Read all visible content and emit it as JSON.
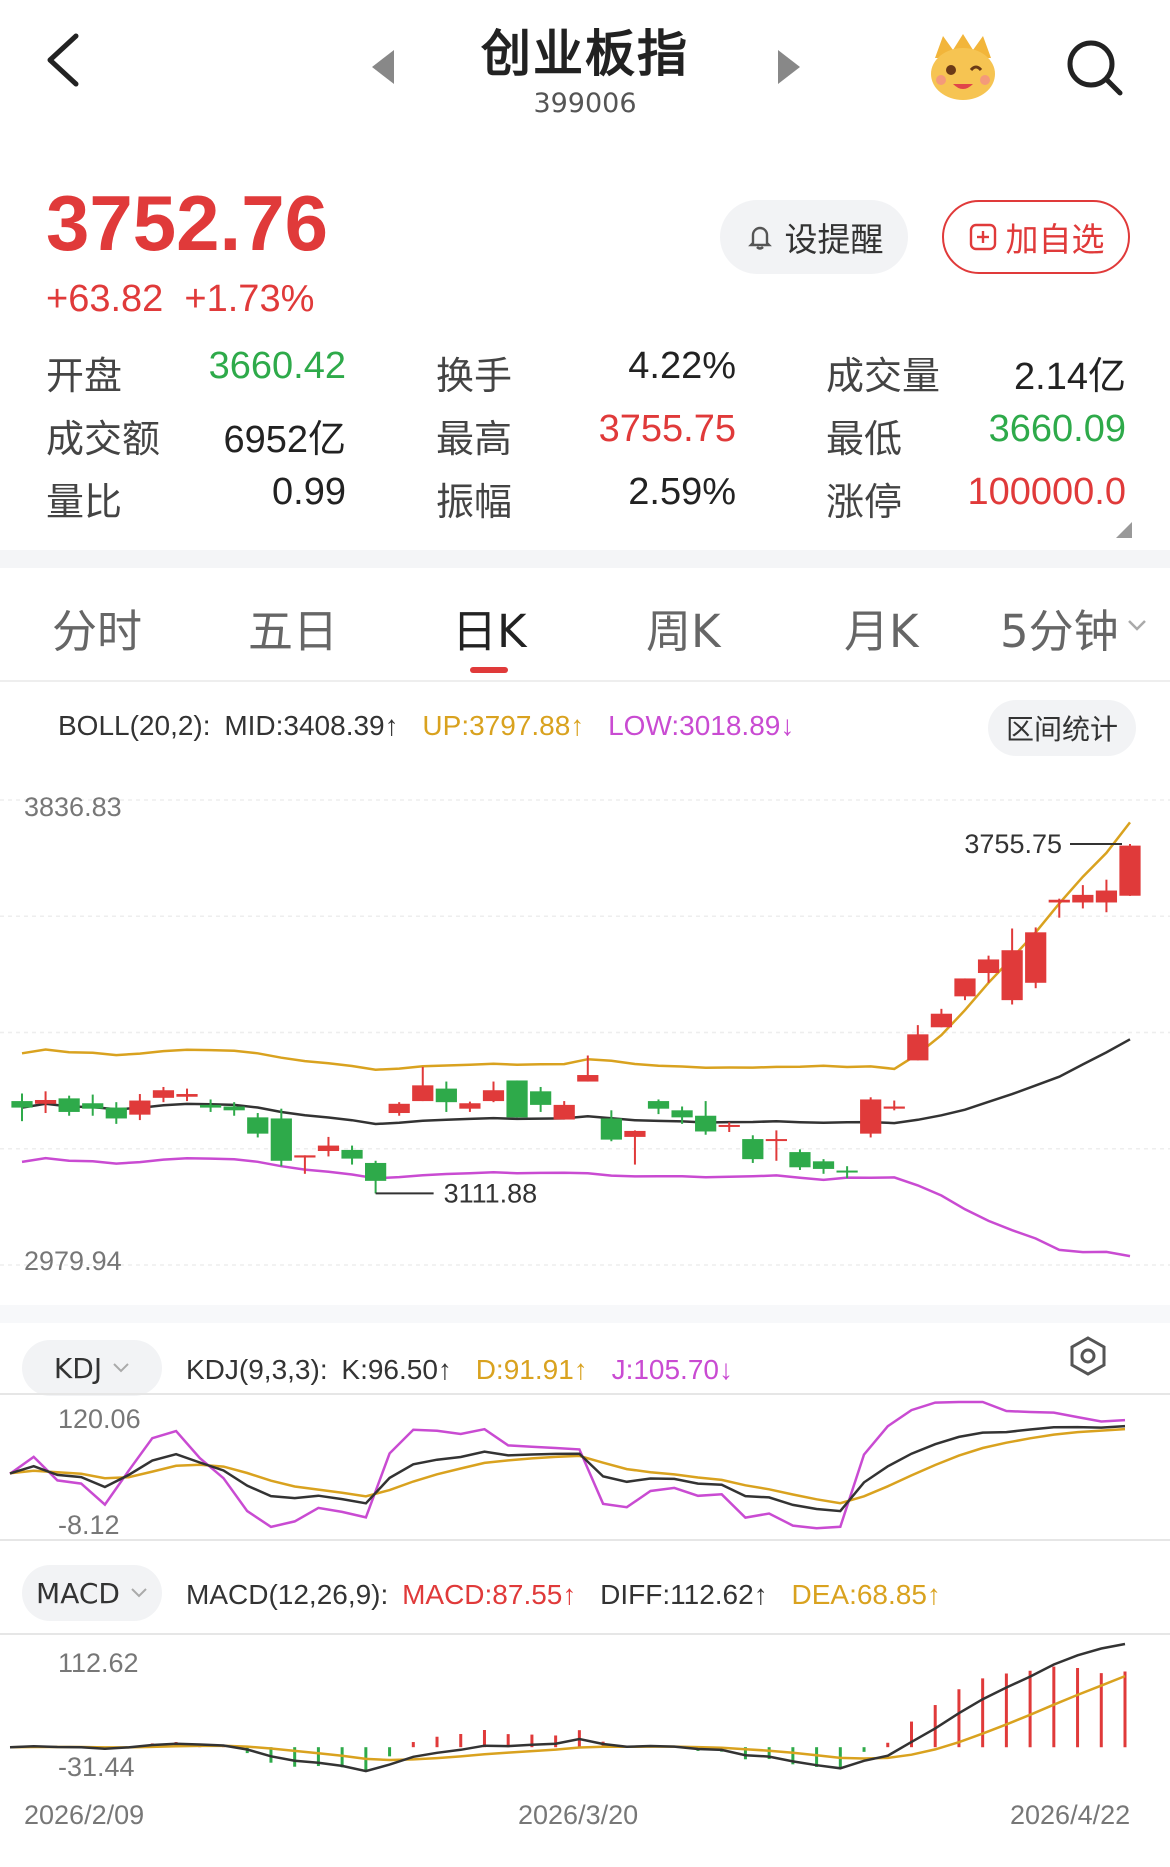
{
  "header": {
    "title": "创业板指",
    "code": "399006",
    "back_icon": "chevron-left-icon",
    "search_icon": "search-icon"
  },
  "quote": {
    "price": "3752.76",
    "change": "+63.82",
    "change_pct": "+1.73%",
    "alert_button": "设提醒",
    "add_watch_button": "加自选"
  },
  "stats": [
    {
      "label": "开盘",
      "value": "3660.42",
      "color": "#2eaa4a"
    },
    {
      "label": "换手",
      "value": "4.22%",
      "color": "#222222"
    },
    {
      "label": "成交量",
      "value": "2.14亿",
      "color": "#222222"
    },
    {
      "label": "成交额",
      "value": "6952亿",
      "color": "#222222"
    },
    {
      "label": "最高",
      "value": "3755.75",
      "color": "#e03a3a"
    },
    {
      "label": "最低",
      "value": "3660.09",
      "color": "#2eaa4a"
    },
    {
      "label": "量比",
      "value": "0.99",
      "color": "#222222"
    },
    {
      "label": "振幅",
      "value": "2.59%",
      "color": "#222222"
    },
    {
      "label": "涨停",
      "value": "100000.0",
      "color": "#e03a3a"
    }
  ],
  "tabs": [
    {
      "label": "分时",
      "active": false
    },
    {
      "label": "五日",
      "active": false
    },
    {
      "label": "日K",
      "active": true
    },
    {
      "label": "周K",
      "active": false
    },
    {
      "label": "月K",
      "active": false
    },
    {
      "label": "5分钟",
      "active": false
    }
  ],
  "boll": {
    "prefix": "BOLL(20,2):",
    "mid": "MID:3408.39↑",
    "up": "UP:3797.88↑",
    "low": "LOW:3018.89↓",
    "range_button": "区间统计",
    "mid_color": "#333333",
    "up_color": "#d9a21f",
    "low_color": "#c94bd2"
  },
  "kdj": {
    "selector": "KDJ",
    "prefix": "KDJ(9,3,3):",
    "k": "K:96.50↑",
    "d": "D:91.91↑",
    "j": "J:105.70↓",
    "y_max": "120.06",
    "y_min": "-8.12"
  },
  "macd": {
    "selector": "MACD",
    "prefix": "MACD(12,26,9):",
    "macd": "MACD:87.55↑",
    "diff": "DIFF:112.62↑",
    "dea": "DEA:68.85↑",
    "y_max": "112.62",
    "y_min": "-31.44"
  },
  "dates": {
    "start": "2026/2/09",
    "middle": "2026/3/20",
    "end": "2026/4/22"
  },
  "chart_data": {
    "type": "candlestick",
    "y_axis_top": "3836.83",
    "y_axis_bottom": "2979.94",
    "ylim": [
      2979.94,
      3836.83
    ],
    "high_label": "3755.75",
    "low_label": "3111.88",
    "candles": [
      [
        3282,
        3270,
        3296,
        3245
      ],
      [
        3277,
        3284,
        3300,
        3260
      ],
      [
        3287,
        3262,
        3292,
        3255
      ],
      [
        3278,
        3268,
        3294,
        3255
      ],
      [
        3270,
        3250,
        3280,
        3240
      ],
      [
        3257,
        3283,
        3295,
        3247
      ],
      [
        3288,
        3302,
        3308,
        3280
      ],
      [
        3290,
        3295,
        3305,
        3282
      ],
      [
        3275,
        3270,
        3285,
        3262
      ],
      [
        3272,
        3265,
        3280,
        3255
      ],
      [
        3252,
        3222,
        3260,
        3215
      ],
      [
        3250,
        3172,
        3268,
        3162
      ],
      [
        3178,
        3182,
        3182,
        3148
      ],
      [
        3190,
        3200,
        3216,
        3180
      ],
      [
        3192,
        3176,
        3200,
        3165
      ],
      [
        3168,
        3135,
        3172,
        3111.88
      ],
      [
        3260,
        3277,
        3280,
        3255
      ],
      [
        3282,
        3311,
        3345,
        3282
      ],
      [
        3305,
        3280,
        3318,
        3262
      ],
      [
        3268,
        3278,
        3281,
        3262
      ],
      [
        3282,
        3302,
        3318,
        3280
      ],
      [
        3320,
        3252,
        3320,
        3252
      ],
      [
        3300,
        3275,
        3308,
        3262
      ],
      [
        3248,
        3275,
        3282,
        3248
      ],
      [
        3318,
        3330,
        3366,
        3318
      ],
      [
        3250,
        3211,
        3265,
        3208
      ],
      [
        3216,
        3227,
        3228,
        3165
      ],
      [
        3282,
        3268,
        3285,
        3258
      ],
      [
        3265,
        3252,
        3272,
        3240
      ],
      [
        3255,
        3226,
        3282,
        3220
      ],
      [
        3238,
        3238,
        3243,
        3225
      ],
      [
        3212,
        3175,
        3219,
        3168
      ],
      [
        3210,
        3212,
        3228,
        3172
      ],
      [
        3188,
        3160,
        3193,
        3155
      ],
      [
        3171,
        3157,
        3175,
        3148
      ],
      [
        3154,
        3152,
        3162,
        3140
      ],
      [
        3222,
        3285,
        3289,
        3215
      ],
      [
        3268,
        3272,
        3283,
        3265
      ],
      [
        3357,
        3405,
        3422,
        3357
      ],
      [
        3418,
        3443,
        3452,
        3418
      ],
      [
        3475,
        3508,
        3508,
        3468
      ],
      [
        3518,
        3543,
        3550,
        3500
      ],
      [
        3468,
        3560,
        3600,
        3460
      ],
      [
        3500,
        3593,
        3602,
        3490
      ],
      [
        3648,
        3653,
        3655,
        3620
      ],
      [
        3648,
        3662,
        3680,
        3637
      ],
      [
        3648,
        3670,
        3690,
        3630
      ],
      [
        3660.42,
        3752.76,
        3755.75,
        3660.09
      ]
    ]
  }
}
